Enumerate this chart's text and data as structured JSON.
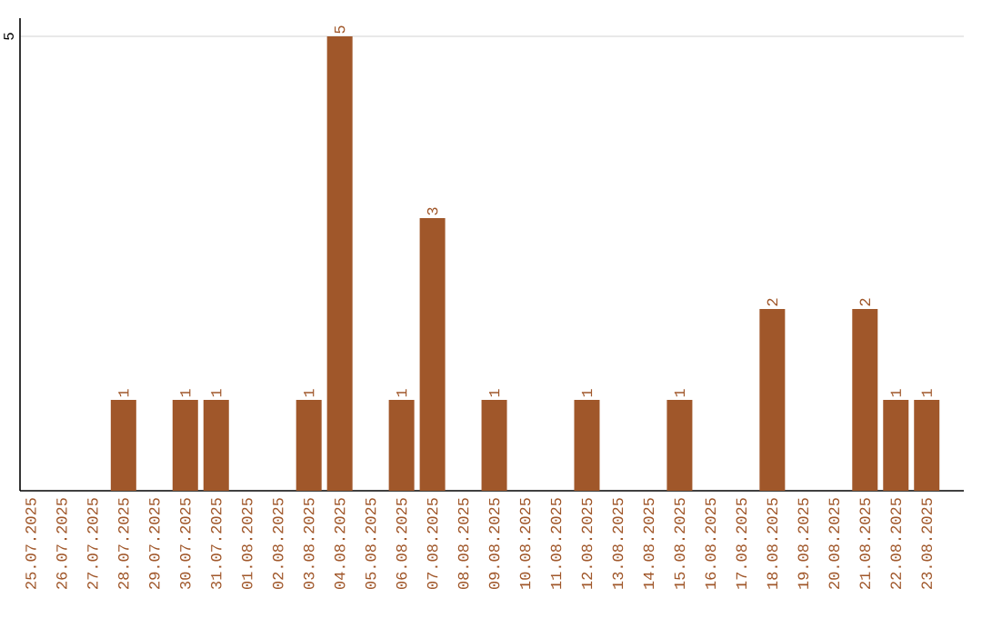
{
  "chart_data": {
    "type": "bar",
    "categories": [
      "25.07.2025",
      "26.07.2025",
      "27.07.2025",
      "28.07.2025",
      "29.07.2025",
      "30.07.2025",
      "31.07.2025",
      "01.08.2025",
      "02.08.2025",
      "03.08.2025",
      "04.08.2025",
      "05.08.2025",
      "06.08.2025",
      "07.08.2025",
      "08.08.2025",
      "09.08.2025",
      "10.08.2025",
      "11.08.2025",
      "12.08.2025",
      "13.08.2025",
      "14.08.2025",
      "15.08.2025",
      "16.08.2025",
      "17.08.2025",
      "18.08.2025",
      "19.08.2025",
      "20.08.2025",
      "21.08.2025",
      "22.08.2025",
      "23.08.2025"
    ],
    "values": [
      0,
      0,
      0,
      1,
      0,
      1,
      1,
      0,
      0,
      1,
      5,
      0,
      1,
      3,
      0,
      1,
      0,
      0,
      1,
      0,
      0,
      1,
      0,
      0,
      2,
      0,
      0,
      2,
      1,
      1
    ],
    "value_labels": [
      null,
      null,
      null,
      "1",
      null,
      "1",
      "1",
      null,
      null,
      "1",
      "5",
      null,
      "1",
      "3",
      null,
      "1",
      null,
      null,
      "1",
      null,
      null,
      "1",
      null,
      null,
      "2",
      null,
      null,
      "2",
      "1",
      "1"
    ],
    "color": "#a0572a",
    "ylim": [
      0,
      5.2
    ],
    "yticks": [
      5
    ],
    "grid": "y"
  }
}
